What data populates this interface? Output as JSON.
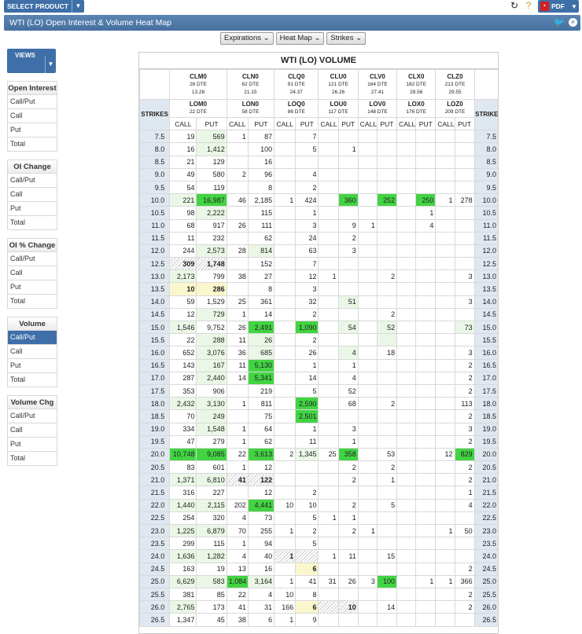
{
  "toolbar": {
    "select_product": "SELECT PRODUCT",
    "pdf": "PDF"
  },
  "window": {
    "title": "WTI (LO) Open Interest & Volume Heat Map"
  },
  "dropdowns": [
    "Expirations",
    "Heat Map",
    "Strikes"
  ],
  "sidebar": {
    "views_label": "VIEWS",
    "sections": [
      {
        "title": "Open Interest",
        "items": [
          "Call/Put",
          "Call",
          "Put",
          "Total"
        ]
      },
      {
        "title": "OI Change",
        "items": [
          "Call/Put",
          "Call",
          "Put",
          "Total"
        ]
      },
      {
        "title": "OI % Change",
        "items": [
          "Call/Put",
          "Call",
          "Put",
          "Total"
        ]
      },
      {
        "title": "Volume",
        "items": [
          "Call/Put",
          "Call",
          "Put",
          "Total"
        ],
        "active": 0
      },
      {
        "title": "Volume Chg",
        "items": [
          "Call/Put",
          "Call",
          "Put",
          "Total"
        ]
      }
    ]
  },
  "table": {
    "title": "WTI (LO) VOLUME",
    "strikes_label": "STRIKES",
    "strike_label_right": "STRIKE",
    "call_label": "CALL",
    "put_label": "PUT",
    "futures": [
      {
        "code": "CLM0",
        "dte": "28 DTE",
        "price": "13.28"
      },
      {
        "code": "CLN0",
        "dte": "62 DTE",
        "price": "21.15"
      },
      {
        "code": "CLQ0",
        "dte": "91 DTE",
        "price": "24.37"
      },
      {
        "code": "CLU0",
        "dte": "121 DTE",
        "price": "26.26"
      },
      {
        "code": "CLV0",
        "dte": "164 DTE",
        "price": "27.41"
      },
      {
        "code": "CLX0",
        "dte": "182 DTE",
        "price": "28.56"
      },
      {
        "code": "CLZ0",
        "dte": "213 DTE",
        "price": "29.55"
      }
    ],
    "options": [
      {
        "code": "LOM0",
        "dte": "22 DTE"
      },
      {
        "code": "LON0",
        "dte": "58 DTE"
      },
      {
        "code": "LOQ0",
        "dte": "86 DTE"
      },
      {
        "code": "LOU0",
        "dte": "117 DTE"
      },
      {
        "code": "LOV0",
        "dte": "148 DTE"
      },
      {
        "code": "LOX0",
        "dte": "176 DTE"
      },
      {
        "code": "LOZ0",
        "dte": "209 DTE"
      }
    ],
    "rows": [
      {
        "strike": "7.5",
        "cells": [
          "19",
          "569",
          "1",
          "87",
          "",
          "7",
          "",
          "",
          "",
          "",
          "",
          "",
          "",
          ""
        ]
      },
      {
        "strike": "8.0",
        "cells": [
          "16",
          "1,412",
          "",
          "100",
          "",
          "5",
          "",
          "1",
          "",
          "",
          "",
          "",
          "",
          ""
        ]
      },
      {
        "strike": "8.5",
        "cells": [
          "21",
          "129",
          "",
          "16",
          "",
          "",
          "",
          "",
          "",
          "",
          "",
          "",
          "",
          ""
        ]
      },
      {
        "strike": "9.0",
        "cells": [
          "49",
          "580",
          "2",
          "96",
          "",
          "4",
          "",
          "",
          "",
          "",
          "",
          "",
          "",
          ""
        ]
      },
      {
        "strike": "9.5",
        "cells": [
          "54",
          "119",
          "",
          "8",
          "",
          "2",
          "",
          "",
          "",
          "",
          "",
          "",
          "",
          ""
        ]
      },
      {
        "strike": "10.0",
        "cells": [
          "221",
          "16,987",
          "46",
          "2,185",
          "1",
          "424",
          "",
          "360",
          "",
          "252",
          "",
          "250",
          "1",
          "278"
        ]
      },
      {
        "strike": "10.5",
        "cells": [
          "98",
          "2,222",
          "",
          "115",
          "",
          "1",
          "",
          "",
          "",
          "",
          "",
          "1",
          "",
          ""
        ]
      },
      {
        "strike": "11.0",
        "cells": [
          "68",
          "917",
          "26",
          "111",
          "",
          "3",
          "",
          "9",
          "1",
          "",
          "",
          "4",
          "",
          ""
        ]
      },
      {
        "strike": "11.5",
        "cells": [
          "11",
          "232",
          "",
          "62",
          "",
          "24",
          "",
          "2",
          "",
          "",
          "",
          "",
          "",
          ""
        ]
      },
      {
        "strike": "12.0",
        "cells": [
          "244",
          "2,573",
          "28",
          "814",
          "",
          "63",
          "",
          "3",
          "",
          "",
          "",
          "",
          "",
          ""
        ]
      },
      {
        "strike": "12.5",
        "cells": [
          "309",
          "1,748",
          "",
          "152",
          "",
          "7",
          "",
          "",
          "",
          "",
          "",
          "",
          "",
          ""
        ]
      },
      {
        "strike": "13.0",
        "cells": [
          "2,173",
          "799",
          "38",
          "27",
          "",
          "12",
          "1",
          "",
          "",
          "2",
          "",
          "",
          "",
          "3"
        ]
      },
      {
        "strike": "13.5",
        "cells": [
          "10",
          "286",
          "",
          "8",
          "",
          "3",
          "",
          "",
          "",
          "",
          "",
          "",
          "",
          ""
        ]
      },
      {
        "strike": "14.0",
        "cells": [
          "59",
          "1,529",
          "25",
          "361",
          "",
          "32",
          "",
          "51",
          "",
          "",
          "",
          "",
          "",
          "3"
        ]
      },
      {
        "strike": "14.5",
        "cells": [
          "12",
          "729",
          "1",
          "14",
          "",
          "2",
          "",
          "",
          "",
          "2",
          "",
          "",
          "",
          ""
        ]
      },
      {
        "strike": "15.0",
        "cells": [
          "1,546",
          "9,752",
          "26",
          "2,491",
          "",
          "1,090",
          "",
          "54",
          "",
          "52",
          "",
          "",
          "",
          "73"
        ]
      },
      {
        "strike": "15.5",
        "cells": [
          "22",
          "288",
          "11",
          "26",
          "",
          "2",
          "",
          "",
          "",
          "",
          "",
          "",
          "",
          ""
        ]
      },
      {
        "strike": "16.0",
        "cells": [
          "652",
          "3,076",
          "36",
          "685",
          "",
          "26",
          "",
          "4",
          "",
          "18",
          "",
          "",
          "",
          "3"
        ]
      },
      {
        "strike": "16.5",
        "cells": [
          "143",
          "167",
          "11",
          "5,130",
          "",
          "1",
          "",
          "1",
          "",
          "",
          "",
          "",
          "",
          "2"
        ]
      },
      {
        "strike": "17.0",
        "cells": [
          "287",
          "2,440",
          "14",
          "5,341",
          "",
          "14",
          "",
          "4",
          "",
          "",
          "",
          "",
          "",
          "2"
        ]
      },
      {
        "strike": "17.5",
        "cells": [
          "353",
          "906",
          "",
          "219",
          "",
          "5",
          "",
          "52",
          "",
          "",
          "",
          "",
          "",
          "2"
        ]
      },
      {
        "strike": "18.0",
        "cells": [
          "2,432",
          "3,130",
          "1",
          "811",
          "",
          "2,590",
          "",
          "68",
          "",
          "2",
          "",
          "",
          "",
          "113"
        ]
      },
      {
        "strike": "18.5",
        "cells": [
          "70",
          "249",
          "",
          "75",
          "",
          "2,501",
          "",
          "",
          "",
          "",
          "",
          "",
          "",
          "2"
        ]
      },
      {
        "strike": "19.0",
        "cells": [
          "334",
          "1,548",
          "1",
          "64",
          "",
          "1",
          "",
          "3",
          "",
          "",
          "",
          "",
          "",
          "3"
        ]
      },
      {
        "strike": "19.5",
        "cells": [
          "47",
          "279",
          "1",
          "62",
          "",
          "11",
          "",
          "1",
          "",
          "",
          "",
          "",
          "",
          "2"
        ]
      },
      {
        "strike": "20.0",
        "cells": [
          "10,748",
          "9,085",
          "22",
          "3,613",
          "2",
          "1,345",
          "25",
          "358",
          "",
          "53",
          "",
          "",
          "12",
          "829"
        ]
      },
      {
        "strike": "20.5",
        "cells": [
          "83",
          "601",
          "1",
          "12",
          "",
          "",
          "",
          "2",
          "",
          "2",
          "",
          "",
          "",
          "2"
        ]
      },
      {
        "strike": "21.0",
        "cells": [
          "1,371",
          "6,810",
          "41",
          "122",
          "",
          "",
          "",
          "2",
          "",
          "1",
          "",
          "",
          "",
          "2"
        ]
      },
      {
        "strike": "21.5",
        "cells": [
          "316",
          "227",
          "",
          "12",
          "",
          "2",
          "",
          "",
          "",
          "",
          "",
          "",
          "",
          "1"
        ]
      },
      {
        "strike": "22.0",
        "cells": [
          "1,440",
          "2,115",
          "202",
          "4,441",
          "10",
          "10",
          "",
          "2",
          "",
          "5",
          "",
          "",
          "",
          "4"
        ]
      },
      {
        "strike": "22.5",
        "cells": [
          "254",
          "320",
          "4",
          "73",
          "",
          "5",
          "1",
          "1",
          "",
          "",
          "",
          "",
          "",
          ""
        ]
      },
      {
        "strike": "23.0",
        "cells": [
          "1,225",
          "6,879",
          "70",
          "255",
          "1",
          "2",
          "",
          "2",
          "1",
          "",
          "",
          "",
          "1",
          "50"
        ]
      },
      {
        "strike": "23.5",
        "cells": [
          "299",
          "115",
          "1",
          "94",
          "",
          "5",
          "",
          "",
          "",
          "",
          "",
          "",
          "",
          ""
        ]
      },
      {
        "strike": "24.0",
        "cells": [
          "1,636",
          "1,282",
          "4",
          "40",
          "1",
          "",
          "1",
          "11",
          "",
          "15",
          "",
          "",
          "",
          ""
        ]
      },
      {
        "strike": "24.5",
        "cells": [
          "163",
          "19",
          "13",
          "16",
          "",
          "6",
          "",
          "",
          "",
          "",
          "",
          "",
          "",
          "2"
        ]
      },
      {
        "strike": "25.0",
        "cells": [
          "6,629",
          "583",
          "1,084",
          "3,164",
          "1",
          "41",
          "31",
          "26",
          "3",
          "100",
          "",
          "1",
          "1",
          "366"
        ]
      },
      {
        "strike": "25.5",
        "cells": [
          "381",
          "85",
          "22",
          "4",
          "10",
          "8",
          "",
          "",
          "",
          "",
          "",
          "",
          "",
          "2"
        ]
      },
      {
        "strike": "26.0",
        "cells": [
          "2,765",
          "173",
          "41",
          "31",
          "166",
          "6",
          "",
          "10",
          "",
          "14",
          "",
          "",
          "",
          "2"
        ]
      },
      {
        "strike": "26.5",
        "cells": [
          "1,347",
          "45",
          "38",
          "6",
          "1",
          "9",
          "",
          "",
          "",
          "",
          "",
          "",
          "",
          ""
        ]
      }
    ]
  }
}
